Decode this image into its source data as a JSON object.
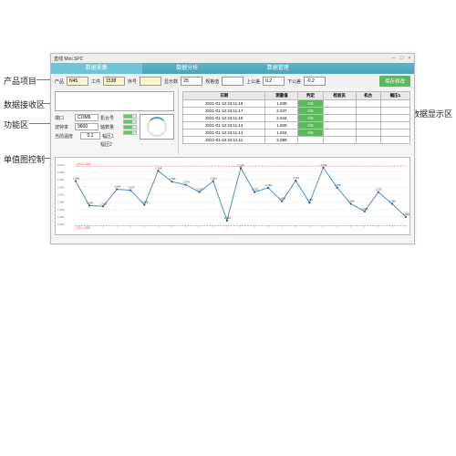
{
  "callouts": {
    "product": "产品项目",
    "recv": "数据接收区",
    "func": "功能区",
    "chartctrl": "单值图控制",
    "display": "数据显示区"
  },
  "window": {
    "title": "直线 Mini SPC",
    "controls": {
      "min": "—",
      "max": "☐",
      "close": "✕"
    }
  },
  "menu": {
    "items": [
      "数据采集",
      "数据分析",
      "数据管理",
      ""
    ]
  },
  "toolbar": {
    "product_label": "产品",
    "product_val": "N45",
    "workpiece_label": "工件",
    "workpiece_val": "1538",
    "order_label": "序号",
    "order_val": "",
    "count_label": "显示数",
    "count_val": "25",
    "spec_label": "规格值",
    "spec_val": "",
    "upper_label": "上公差",
    "upper_val": "0.2",
    "lower_label": "下公差",
    "lower_val": "-0.2",
    "save_btn": "保存修改"
  },
  "recv": {
    "port_label": "端口",
    "port_val": "COM6",
    "baud_label": "波特率",
    "baud_val": "9600",
    "pos_label": "机台号",
    "axis_label": "轴数量",
    "p1_label": "幅压1",
    "p2_label": "幅压2",
    "range_label": "当前温度",
    "range_val": "0.1"
  },
  "table": {
    "headers": [
      "日期",
      "测量值",
      "判定",
      "检验员",
      "机台",
      "幅压1"
    ],
    "rows": [
      [
        "2021-01-13 23:11:19",
        "1.939",
        "OK",
        "",
        "",
        ""
      ],
      [
        "2021-01-13 23:11:17",
        "2.037",
        "OK",
        "",
        "",
        ""
      ],
      [
        "2021-01-13 23:11:15",
        "2.044",
        "OK",
        "",
        "",
        ""
      ],
      [
        "2021-01-13 23:11:13",
        "1.929",
        "OK",
        "",
        "",
        ""
      ],
      [
        "2021-01-13 23:11:12",
        "1.934",
        "OK",
        "",
        "",
        ""
      ],
      [
        "2021-01-13 23:11:11",
        "2.099",
        "",
        "",
        "",
        ""
      ]
    ]
  },
  "chart": {
    "usl_label": "USL2.200",
    "usl": 2.2,
    "lsl_label": "LSL1.800",
    "lsl": 1.8,
    "yticks": [
      "2.210",
      "2.160",
      "2.110",
      "2.060",
      "2.010",
      "1.960",
      "1.910",
      "1.860",
      "1.810"
    ],
    "xlabels": [
      "2.099",
      "1.934",
      "1.929",
      "2.044",
      "2.037",
      "1.939",
      "2.168",
      "2.095",
      "2.074",
      "2.025",
      "2.099",
      "1.833",
      "2.187",
      "2.025",
      "2.054",
      "1.963",
      "2.102",
      "1.954",
      "2.190",
      "2.055",
      "1.946",
      "1.895",
      "2.025",
      "1.946",
      "1.858"
    ],
    "values": [
      2.099,
      1.934,
      1.929,
      2.044,
      2.037,
      1.939,
      2.168,
      2.095,
      2.074,
      2.025,
      2.099,
      1.833,
      2.187,
      2.025,
      2.054,
      1.963,
      2.102,
      1.954,
      2.19,
      2.055,
      1.946,
      1.895,
      2.025,
      1.946,
      1.858
    ],
    "line_color": "#4a90d9",
    "marker_color": "#2a5a9a",
    "usl_color": "#d9534f",
    "lsl_color": "#d9534f",
    "background": "#ffffff",
    "grid_color": "#e0e0e0",
    "marker_size": 2,
    "line_width": 1,
    "ymin": 1.8,
    "ymax": 2.22
  }
}
